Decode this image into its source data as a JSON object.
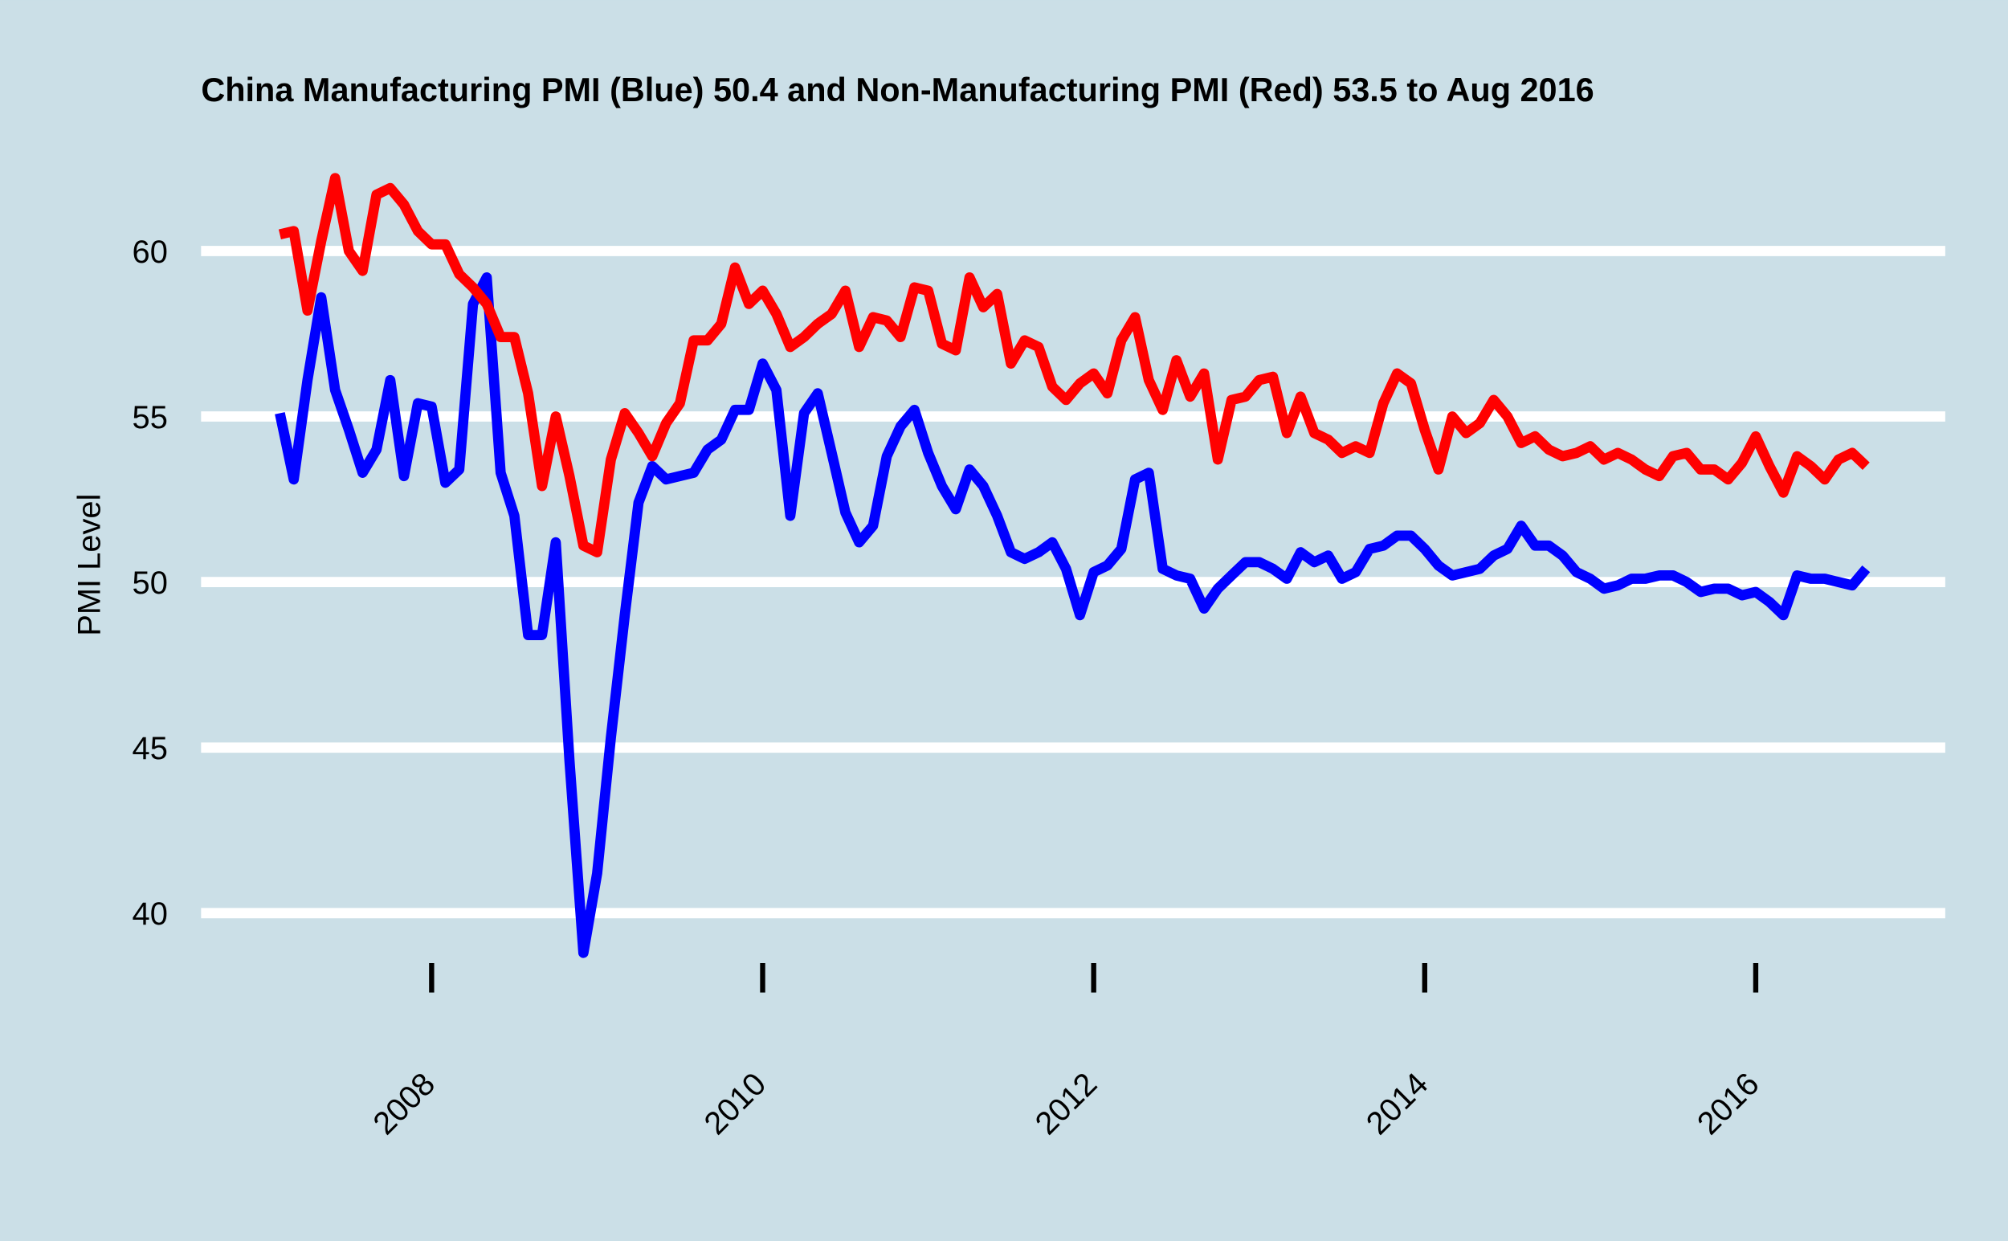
{
  "chart_data": {
    "type": "line",
    "title": "China Manufacturing PMI (Blue) 50.4 and Non-Manufacturing PMI (Red) 53.5 to Aug 2016",
    "y_label": "PMI Level",
    "x": [
      2007.083,
      2007.167,
      2007.25,
      2007.333,
      2007.417,
      2007.5,
      2007.583,
      2007.667,
      2007.75,
      2007.833,
      2007.917,
      2008,
      2008.083,
      2008.167,
      2008.25,
      2008.333,
      2008.417,
      2008.5,
      2008.583,
      2008.667,
      2008.75,
      2008.833,
      2008.917,
      2009,
      2009.083,
      2009.167,
      2009.25,
      2009.333,
      2009.417,
      2009.5,
      2009.583,
      2009.667,
      2009.75,
      2009.833,
      2009.917,
      2010,
      2010.083,
      2010.167,
      2010.25,
      2010.333,
      2010.417,
      2010.5,
      2010.583,
      2010.667,
      2010.75,
      2010.833,
      2010.917,
      2011,
      2011.083,
      2011.167,
      2011.25,
      2011.333,
      2011.417,
      2011.5,
      2011.583,
      2011.667,
      2011.75,
      2011.833,
      2011.917,
      2012,
      2012.083,
      2012.167,
      2012.25,
      2012.333,
      2012.417,
      2012.5,
      2012.583,
      2012.667,
      2012.75,
      2012.833,
      2012.917,
      2013,
      2013.083,
      2013.167,
      2013.25,
      2013.333,
      2013.417,
      2013.5,
      2013.583,
      2013.667,
      2013.75,
      2013.833,
      2013.917,
      2014,
      2014.083,
      2014.167,
      2014.25,
      2014.333,
      2014.417,
      2014.5,
      2014.583,
      2014.667,
      2014.75,
      2014.833,
      2014.917,
      2015,
      2015.083,
      2015.167,
      2015.25,
      2015.333,
      2015.417,
      2015.5,
      2015.583,
      2015.667,
      2015.75,
      2015.833,
      2015.917,
      2016,
      2016.083,
      2016.167,
      2016.25,
      2016.333,
      2016.417,
      2016.5,
      2016.583,
      2016.667
    ],
    "series": [
      {
        "name": "Manufacturing PMI",
        "color": "#0000ff",
        "values": [
          55.1,
          53.1,
          56.1,
          58.6,
          55.8,
          54.6,
          53.3,
          54.0,
          56.1,
          53.2,
          55.4,
          55.3,
          53.0,
          53.4,
          58.4,
          59.2,
          53.3,
          52.0,
          48.4,
          48.4,
          51.2,
          44.6,
          38.8,
          41.2,
          45.3,
          49.0,
          52.4,
          53.5,
          53.1,
          53.2,
          53.3,
          54.0,
          54.3,
          55.2,
          55.2,
          56.6,
          55.8,
          52.0,
          55.1,
          55.7,
          53.9,
          52.1,
          51.2,
          51.7,
          53.8,
          54.7,
          55.2,
          53.9,
          52.9,
          52.2,
          53.4,
          52.9,
          52.0,
          50.9,
          50.7,
          50.9,
          51.2,
          50.4,
          49.0,
          50.3,
          50.5,
          51.0,
          53.1,
          53.3,
          50.4,
          50.2,
          50.1,
          49.2,
          49.8,
          50.2,
          50.6,
          50.6,
          50.4,
          50.1,
          50.9,
          50.6,
          50.8,
          50.1,
          50.3,
          51.0,
          51.1,
          51.4,
          51.4,
          51.0,
          50.5,
          50.2,
          50.3,
          50.4,
          50.8,
          51.0,
          51.7,
          51.1,
          51.1,
          50.8,
          50.3,
          50.1,
          49.8,
          49.9,
          50.1,
          50.1,
          50.2,
          50.2,
          50.0,
          49.7,
          49.8,
          49.8,
          49.6,
          49.7,
          49.4,
          49.0,
          50.2,
          50.1,
          50.1,
          50.0,
          49.9,
          50.4
        ]
      },
      {
        "name": "Non-Manufacturing PMI",
        "color": "#ff0000",
        "values": [
          60.5,
          60.6,
          58.2,
          60.3,
          62.2,
          60.0,
          59.4,
          61.7,
          61.9,
          61.4,
          60.6,
          60.2,
          60.2,
          59.3,
          58.9,
          58.4,
          57.4,
          57.4,
          55.7,
          52.9,
          55.0,
          53.2,
          51.1,
          50.9,
          53.7,
          55.1,
          54.5,
          53.8,
          54.8,
          55.4,
          57.3,
          57.3,
          57.8,
          59.5,
          58.4,
          58.8,
          58.1,
          57.1,
          57.4,
          57.8,
          58.1,
          58.8,
          57.1,
          58.0,
          57.9,
          57.4,
          58.9,
          58.8,
          57.2,
          57.0,
          59.2,
          58.3,
          58.7,
          56.6,
          57.3,
          57.1,
          55.9,
          55.5,
          56.0,
          56.3,
          55.7,
          57.3,
          58.0,
          56.1,
          55.2,
          56.7,
          55.6,
          56.3,
          53.7,
          55.5,
          55.6,
          56.1,
          56.2,
          54.5,
          55.6,
          54.5,
          54.3,
          53.9,
          54.1,
          53.9,
          55.4,
          56.3,
          56.0,
          54.6,
          53.4,
          55.0,
          54.5,
          54.8,
          55.5,
          55.0,
          54.2,
          54.4,
          54.0,
          53.8,
          53.9,
          54.1,
          53.7,
          53.9,
          53.7,
          53.4,
          53.2,
          53.8,
          53.9,
          53.4,
          53.4,
          53.1,
          53.6,
          54.4,
          53.5,
          52.7,
          53.8,
          53.5,
          53.1,
          53.7,
          53.9,
          53.5
        ]
      }
    ],
    "xlim": [
      2006.607,
      2017.145
    ],
    "ylim": [
      38,
      63
    ],
    "xticks": [
      2008,
      2010,
      2012,
      2014,
      2016
    ],
    "yticks": [
      40,
      45,
      50,
      55,
      60
    ],
    "grid": true
  }
}
